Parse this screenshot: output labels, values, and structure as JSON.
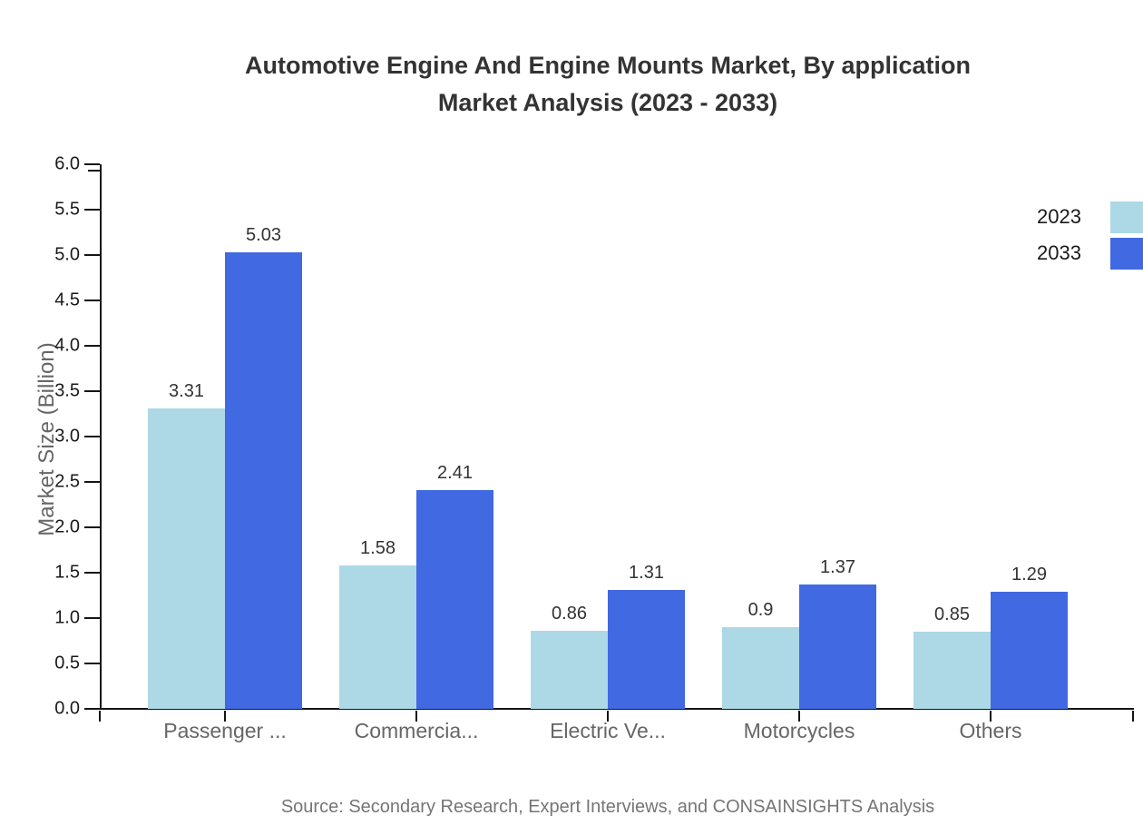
{
  "title": {
    "line1": "Automotive Engine And Engine Mounts Market, By application",
    "line2": "Market Analysis (2023 - 2033)"
  },
  "chart_data": {
    "type": "bar",
    "title": "Automotive Engine And Engine Mounts Market, By application Market Analysis (2023 - 2033)",
    "categories": [
      "Passenger ...",
      "Commercia...",
      "Electric Ve...",
      "Motorcycles",
      "Others"
    ],
    "series": [
      {
        "name": "2023",
        "color": "#ADD8E6",
        "values": [
          3.31,
          1.58,
          0.86,
          0.9,
          0.85
        ],
        "labels": [
          "3.31",
          "1.58",
          "0.86",
          "0.9",
          "0.85"
        ]
      },
      {
        "name": "2033",
        "color": "#4169E1",
        "values": [
          5.03,
          2.41,
          1.31,
          1.37,
          1.29
        ],
        "labels": [
          "5.03",
          "2.41",
          "1.31",
          "1.37",
          "1.29"
        ]
      }
    ],
    "xlabel": "",
    "ylabel": "Market Size (Billion)",
    "ylim": [
      0,
      6
    ],
    "ytick_step": 0.5,
    "yticks": [
      "6.0",
      "5.5",
      "5.0",
      "4.5",
      "4.0",
      "3.5",
      "3.0",
      "2.5",
      "2.0",
      "1.5",
      "1.0",
      "0.5",
      "0.0"
    ],
    "grid": false,
    "legend_position": "top-right"
  },
  "footer": {
    "source": "Source: Secondary Research, Expert Interviews, and CONSAINSIGHTS Analysis"
  },
  "colors": {
    "series_2023": "#ADD8E6",
    "series_2033": "#4169E1",
    "axis": "#151515",
    "title_text": "#333333",
    "tick_text": "#1a1a1a",
    "category_text": "#666666",
    "value_text": "#333333",
    "source_text": "#757575",
    "background": "#ffffff"
  }
}
